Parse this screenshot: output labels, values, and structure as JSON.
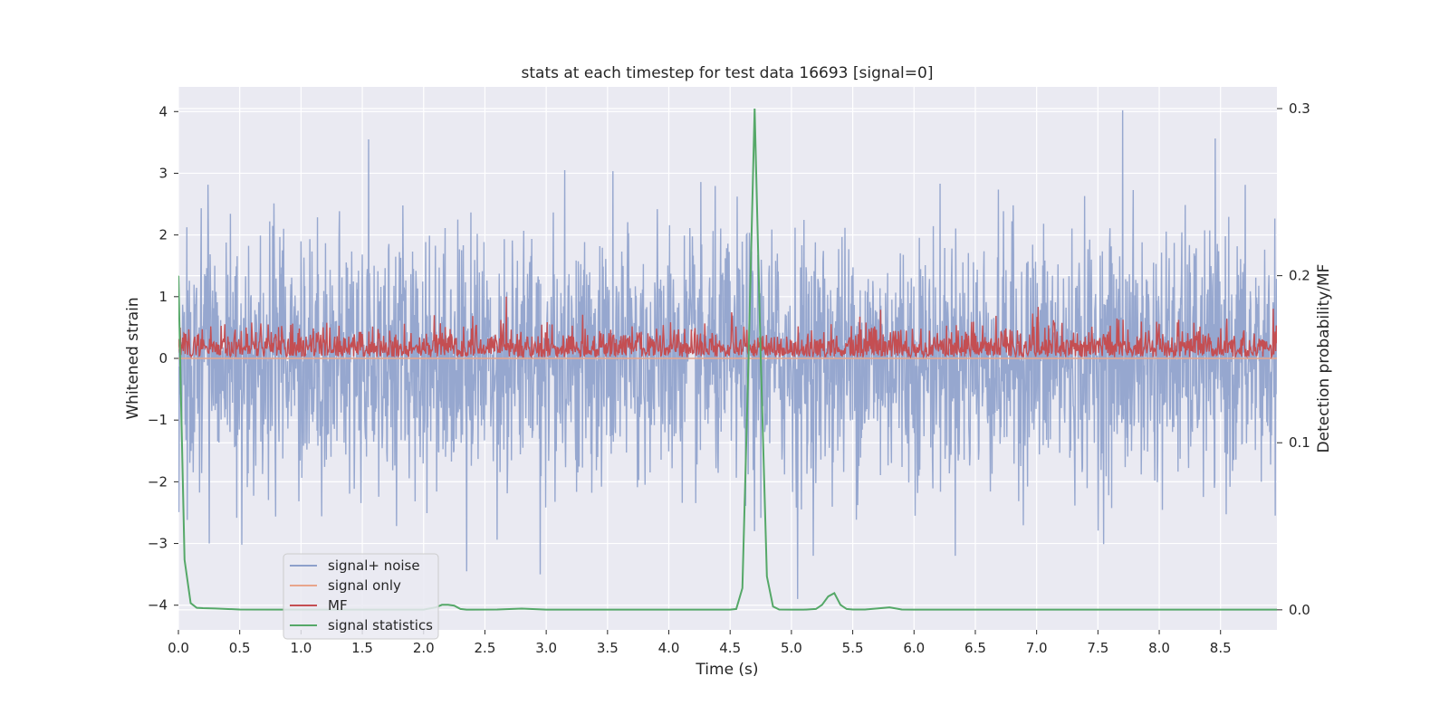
{
  "chart_data": {
    "type": "line",
    "title": "stats at each timestep for test data 16693 [signal=0]",
    "xlabel": "Time (s)",
    "ylabel": "Whitened strain",
    "ylabel_right": "Detection probability/MF",
    "xlim": [
      0.0,
      8.96
    ],
    "ylim": [
      -4.4,
      4.4
    ],
    "ylim_right": [
      -0.012,
      0.313
    ],
    "x_ticks": [
      0.0,
      0.5,
      1.0,
      1.5,
      2.0,
      2.5,
      3.0,
      3.5,
      4.0,
      4.5,
      5.0,
      5.5,
      6.0,
      6.5,
      7.0,
      7.5,
      8.0,
      8.5
    ],
    "x_tick_labels": [
      "0.0",
      "0.5",
      "1.0",
      "1.5",
      "2.0",
      "2.5",
      "3.0",
      "3.5",
      "4.0",
      "4.5",
      "5.0",
      "5.5",
      "6.0",
      "6.5",
      "7.0",
      "7.5",
      "8.0",
      "8.5"
    ],
    "y_ticks": [
      4,
      3,
      2,
      1,
      0,
      -1,
      -2,
      -3,
      -4
    ],
    "y_tick_labels": [
      "4",
      "3",
      "2",
      "1",
      "0",
      "−1",
      "−2",
      "−3",
      "−4"
    ],
    "y_ticks_right": [
      0.3,
      0.2,
      0.1,
      0.0
    ],
    "y_tick_labels_right": [
      "0.3",
      "0.2",
      "0.1",
      "0.0"
    ],
    "grid": true,
    "legend_position": "lower-left",
    "series": [
      {
        "name": "signal+ noise",
        "color": "#8da0cb",
        "axis": "left",
        "description": "whitened strain noise, roughly gaussian, spanning about -3.5 to 4",
        "envelope_min": -3.5,
        "envelope_max": 4.0,
        "peaks": [
          [
            1.55,
            3.55
          ],
          [
            7.7,
            4.02
          ],
          [
            3.15,
            3.05
          ],
          [
            0.25,
            -3.0
          ],
          [
            2.95,
            -3.5
          ],
          [
            2.35,
            -3.45
          ],
          [
            5.05,
            -3.9
          ],
          [
            4.7,
            -2.8
          ]
        ]
      },
      {
        "name": "signal only",
        "color": "#e8a58c",
        "axis": "left",
        "description": "flat at zero (no signal)",
        "value": 0.0
      },
      {
        "name": "MF",
        "color": "#c44e52",
        "axis": "left",
        "description": "matched filter output, positive noise band roughly 0 to 0.9",
        "envelope_min": 0.0,
        "envelope_max": 1.0
      },
      {
        "name": "signal statistics",
        "color": "#55a868",
        "axis": "right",
        "x": [
          0.0,
          0.02,
          0.05,
          0.1,
          0.15,
          0.2,
          0.3,
          0.5,
          1.0,
          1.5,
          2.0,
          2.1,
          2.15,
          2.2,
          2.25,
          2.3,
          2.35,
          2.4,
          2.6,
          2.8,
          3.0,
          4.0,
          4.5,
          4.55,
          4.6,
          4.65,
          4.7,
          4.75,
          4.8,
          4.85,
          4.9,
          5.0,
          5.1,
          5.2,
          5.25,
          5.3,
          5.35,
          5.4,
          5.45,
          5.5,
          5.6,
          5.7,
          5.8,
          5.9,
          6.0,
          7.0,
          8.0,
          8.96
        ],
        "y": [
          0.2,
          0.13,
          0.03,
          0.004,
          0.0012,
          0.001,
          0.0008,
          0.0002,
          0.0001,
          0.0001,
          0.0001,
          0.0015,
          0.003,
          0.003,
          0.0025,
          0.0005,
          0.0001,
          0.0001,
          0.0002,
          0.0007,
          0.0001,
          0.0001,
          0.0001,
          0.0005,
          0.013,
          0.15,
          0.3,
          0.15,
          0.02,
          0.002,
          0.0002,
          0.0001,
          0.0001,
          0.0005,
          0.003,
          0.008,
          0.01,
          0.003,
          0.0005,
          0.0002,
          0.0002,
          0.0008,
          0.0015,
          0.0002,
          0.0001,
          0.0001,
          0.0001,
          0.0001
        ]
      }
    ]
  }
}
